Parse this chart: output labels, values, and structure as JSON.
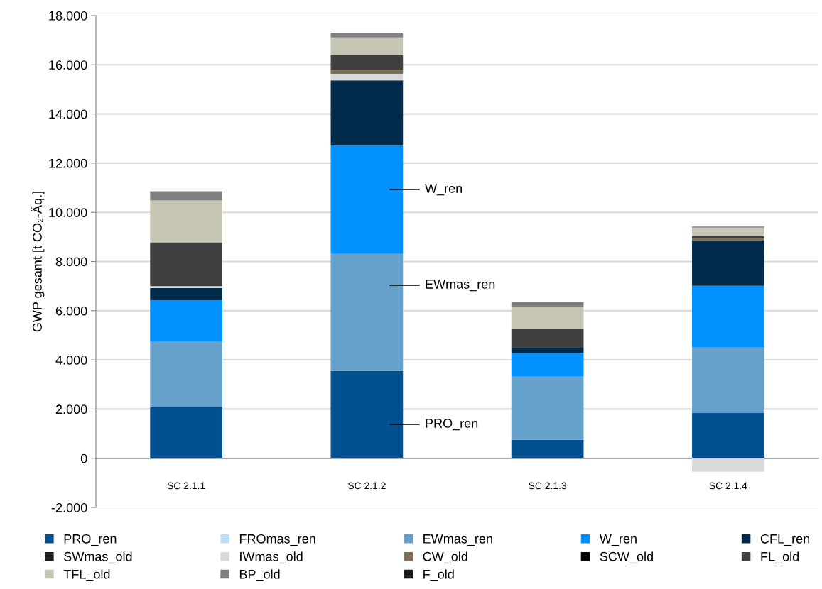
{
  "chart_data": {
    "type": "bar",
    "stacked": true,
    "ylabel": "GWP gesamt [t CO₂-Äq.]",
    "categories": [
      "SC 2.1.1",
      "SC 2.1.2",
      "SC 2.1.3",
      "SC 2.1.4"
    ],
    "series": [
      {
        "name": "PRO_ren",
        "color": "#02508f",
        "values": [
          2080,
          3550,
          750,
          1850
        ]
      },
      {
        "name": "FROmas_ren",
        "color": "#bde0f8",
        "values": [
          0,
          0,
          0,
          0
        ]
      },
      {
        "name": "EWmas_ren",
        "color": "#65a1ca",
        "values": [
          2650,
          4760,
          2570,
          2650
        ]
      },
      {
        "name": "W_ren",
        "color": "#0091ff",
        "values": [
          1700,
          4410,
          960,
          2510
        ]
      },
      {
        "name": "CFL_ren",
        "color": "#022a4a",
        "values": [
          490,
          2650,
          210,
          1840
        ]
      },
      {
        "name": "SWmas_old",
        "color": "#1e1e1e",
        "values": [
          0,
          0,
          0,
          0
        ]
      },
      {
        "name": "IWmas_old",
        "color": "#d9d9d9",
        "values": [
          80,
          260,
          0,
          -550
        ]
      },
      {
        "name": "CW_old",
        "color": "#7b7258",
        "values": [
          0,
          180,
          0,
          90
        ]
      },
      {
        "name": "SCW_old",
        "color": "#000000",
        "values": [
          0,
          0,
          0,
          0
        ]
      },
      {
        "name": "FL_old",
        "color": "#404040",
        "values": [
          1780,
          600,
          760,
          100
        ]
      },
      {
        "name": "TFL_old",
        "color": "#c6c4b2",
        "values": [
          1700,
          700,
          910,
          340
        ]
      },
      {
        "name": "BP_old",
        "color": "#7f7f7f",
        "values": [
          340,
          200,
          190,
          40
        ]
      },
      {
        "name": "F_old",
        "color": "#1a1a1a",
        "values": [
          30,
          0,
          0,
          0
        ]
      }
    ],
    "ylim": [
      -2000,
      18000
    ],
    "yticks": [
      {
        "value": -2000,
        "label": "-2.000"
      },
      {
        "value": 0,
        "label": "0"
      },
      {
        "value": 2000,
        "label": "2.000"
      },
      {
        "value": 4000,
        "label": "4.000"
      },
      {
        "value": 6000,
        "label": "6.000"
      },
      {
        "value": 8000,
        "label": "8.000"
      },
      {
        "value": 10000,
        "label": "10.000"
      },
      {
        "value": 12000,
        "label": "12.000"
      },
      {
        "value": 14000,
        "label": "14.000"
      },
      {
        "value": 16000,
        "label": "16.000"
      },
      {
        "value": 18000,
        "label": "18.000"
      }
    ],
    "annotations": [
      "W_ren",
      "EWmas_ren",
      "PRO_ren"
    ],
    "grid": "y",
    "legend": "bottom",
    "marker": "square"
  }
}
